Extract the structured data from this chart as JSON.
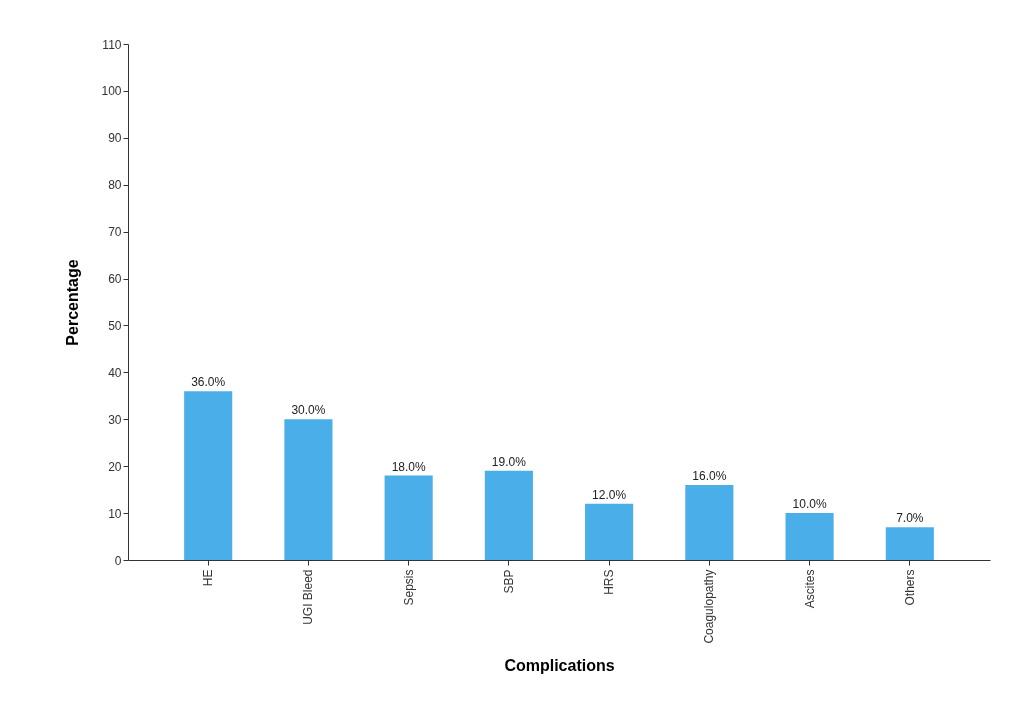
{
  "chart_data": {
    "type": "bar",
    "xlabel": "Complications",
    "ylabel": "Percentage",
    "categories": [
      "HE",
      "UGI Bleed",
      "Sepsis",
      "SBP",
      "HRS",
      "Coagulopathy",
      "Ascites",
      "Others"
    ],
    "values": [
      36,
      30,
      18,
      19,
      12,
      16,
      10,
      7
    ],
    "value_labels": [
      "36.0%",
      "30.0%",
      "18.0%",
      "19.0%",
      "12.0%",
      "16.0%",
      "10.0%",
      "7.0%"
    ],
    "color": "#4aaee8",
    "ylim": [
      0,
      110
    ],
    "yticks": [
      0,
      10,
      20,
      30,
      40,
      50,
      60,
      70,
      80,
      90,
      100,
      110
    ],
    "grid": false
  }
}
